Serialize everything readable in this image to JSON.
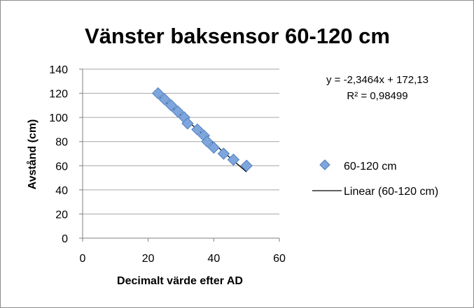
{
  "chart_data": {
    "type": "scatter",
    "title": "Vänster  baksensor 60-120 cm",
    "xlabel": "Decimalt värde efter AD",
    "ylabel": "Avstånd (cm)",
    "xlim": [
      0,
      60
    ],
    "ylim": [
      0,
      140
    ],
    "x_ticks": [
      0,
      20,
      40,
      60
    ],
    "y_ticks": [
      0,
      20,
      40,
      60,
      80,
      100,
      120,
      140
    ],
    "grid": "horizontal",
    "colors": {
      "marker_fill": "#7ea6dc",
      "marker_stroke": "#4f7fc0",
      "trend": "#000000",
      "grid": "#a6a6a6"
    },
    "series": [
      {
        "name": "60-120 cm",
        "marker": "diamond",
        "x": [
          23,
          25,
          27,
          29,
          31,
          32,
          35,
          37,
          38,
          40,
          43,
          46,
          50
        ],
        "y": [
          120,
          115,
          110,
          105,
          100,
          95,
          90,
          85,
          80,
          75,
          70,
          65,
          60
        ]
      }
    ],
    "trendline": {
      "name": "Linear (60-120 cm)",
      "type": "linear",
      "slope": -2.3464,
      "intercept": 172.13,
      "x_range": [
        23,
        50
      ],
      "equation": "y = -2,3464x + 172,13",
      "r_squared": "R² = 0,98499"
    },
    "legend": {
      "position": "right",
      "entries": [
        "60-120 cm",
        "Linear (60-120 cm)"
      ]
    }
  }
}
